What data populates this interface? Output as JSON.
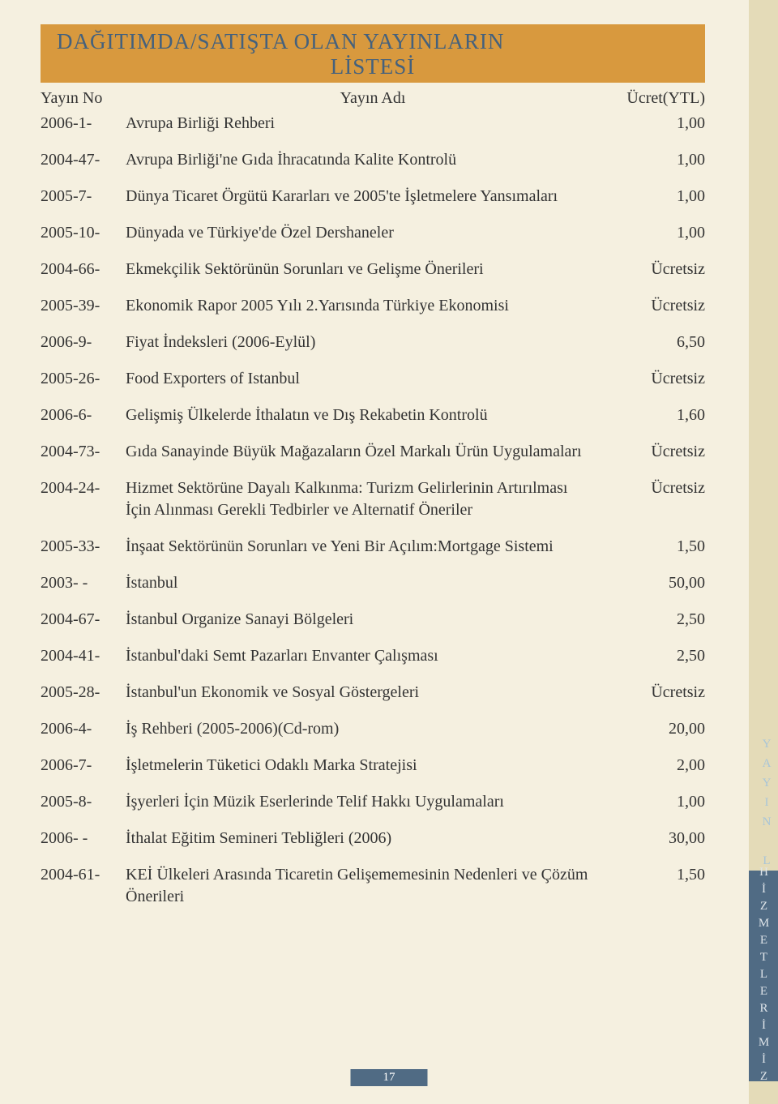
{
  "header": {
    "line1": "DAĞITIMDA/SATIŞTA OLAN YAYINLARIN",
    "line2": "LİSTESİ"
  },
  "columns": {
    "code": "Yayın No",
    "title": "Yayın Adı",
    "price": "Ücret(YTL)"
  },
  "publications": [
    {
      "code": "2006-1-",
      "title": "Avrupa Birliği Rehberi",
      "price": "1,00"
    },
    {
      "code": "2004-47-",
      "title": "Avrupa Birliği'ne Gıda İhracatında Kalite Kontrolü",
      "price": "1,00"
    },
    {
      "code": "2005-7-",
      "title": "Dünya Ticaret Örgütü Kararları ve 2005'te İşletmelere Yansımaları",
      "price": "1,00"
    },
    {
      "code": "2005-10-",
      "title": "Dünyada ve Türkiye'de Özel Dershaneler",
      "price": "1,00"
    },
    {
      "code": "2004-66-",
      "title": "Ekmekçilik Sektörünün Sorunları ve Gelişme Önerileri",
      "price": "Ücretsiz"
    },
    {
      "code": "2005-39-",
      "title": "Ekonomik Rapor 2005 Yılı 2.Yarısında Türkiye Ekonomisi",
      "price": "Ücretsiz"
    },
    {
      "code": "2006-9-",
      "title": "Fiyat İndeksleri (2006-Eylül)",
      "price": "6,50"
    },
    {
      "code": "2005-26-",
      "title": "Food Exporters of Istanbul",
      "price": "Ücretsiz"
    },
    {
      "code": "2006-6-",
      "title": "Gelişmiş Ülkelerde İthalatın ve Dış Rekabetin Kontrolü",
      "price": "1,60"
    },
    {
      "code": "2004-73-",
      "title": "Gıda Sanayinde Büyük Mağazaların Özel Markalı Ürün Uygulamaları",
      "price": "Ücretsiz"
    },
    {
      "code": "2004-24-",
      "title": "Hizmet Sektörüne Dayalı Kalkınma: Turizm Gelirlerinin Artırılması",
      "subtitle": "İçin Alınması Gerekli Tedbirler ve Alternatif Öneriler",
      "price": "Ücretsiz"
    },
    {
      "code": "2005-33-",
      "title": "İnşaat Sektörünün Sorunları ve Yeni Bir Açılım:Mortgage Sistemi",
      "price": "1,50"
    },
    {
      "code": "2003-  -",
      "title": "İstanbul",
      "price": "50,00"
    },
    {
      "code": "2004-67-",
      "title": "İstanbul Organize Sanayi Bölgeleri",
      "price": "2,50"
    },
    {
      "code": "2004-41-",
      "title": "İstanbul'daki Semt Pazarları Envanter Çalışması",
      "price": "2,50"
    },
    {
      "code": "2005-28-",
      "title": "İstanbul'un Ekonomik ve Sosyal Göstergeleri",
      "price": "Ücretsiz"
    },
    {
      "code": "2006-4-",
      "title": "İş Rehberi (2005-2006)(Cd-rom)",
      "price": "20,00"
    },
    {
      "code": "2006-7-",
      "title": "İşletmelerin Tüketici Odaklı Marka Stratejisi",
      "price": "2,00"
    },
    {
      "code": "2005-8-",
      "title": "İşyerleri İçin Müzik Eserlerinde Telif Hakkı Uygulamaları",
      "price": "1,00"
    },
    {
      "code": "2006-  -",
      "title": "İthalat Eğitim Semineri Tebliğleri (2006)",
      "price": "30,00"
    },
    {
      "code": "2004-61-",
      "title": "KEİ Ülkeleri Arasında Ticaretin Gelişememesinin Nedenleri ve Çözüm",
      "subtitle": "Önerileri",
      "price": "1,50"
    }
  ],
  "sidebar": {
    "vertical_label": "YAYIN LİSTESİ",
    "tab_label": "HİZMETLERİMİZ"
  },
  "page_number": "17"
}
